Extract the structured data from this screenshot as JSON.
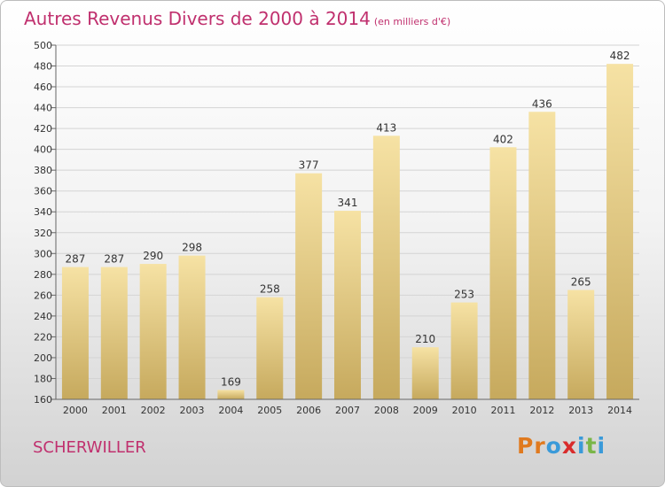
{
  "header": {
    "title": "Autres Revenus Divers de 2000 à 2014",
    "unit": "(en milliers d'€)"
  },
  "footer": {
    "commune": "SCHERWILLER",
    "brand": "Proxiti",
    "brand_colors": [
      "#e07a1f",
      "#e07a1f",
      "#3a9ad9",
      "#d92b2b",
      "#3a9ad9",
      "#7ab648",
      "#3a9ad9"
    ]
  },
  "chart_data": {
    "type": "bar",
    "categories": [
      "2000",
      "2001",
      "2002",
      "2003",
      "2004",
      "2005",
      "2006",
      "2007",
      "2008",
      "2009",
      "2010",
      "2011",
      "2012",
      "2013",
      "2014"
    ],
    "values": [
      287,
      287,
      290,
      298,
      169,
      258,
      377,
      341,
      413,
      210,
      253,
      402,
      436,
      265,
      482
    ],
    "ylim": [
      160,
      500
    ],
    "yticks": [
      160,
      180,
      200,
      220,
      240,
      260,
      280,
      300,
      320,
      340,
      360,
      380,
      400,
      420,
      440,
      460,
      480,
      500
    ],
    "grid": true,
    "bar_color_top": "#f6e2a4",
    "bar_color_bottom": "#c6a95d",
    "title_color": "#c0306e"
  }
}
